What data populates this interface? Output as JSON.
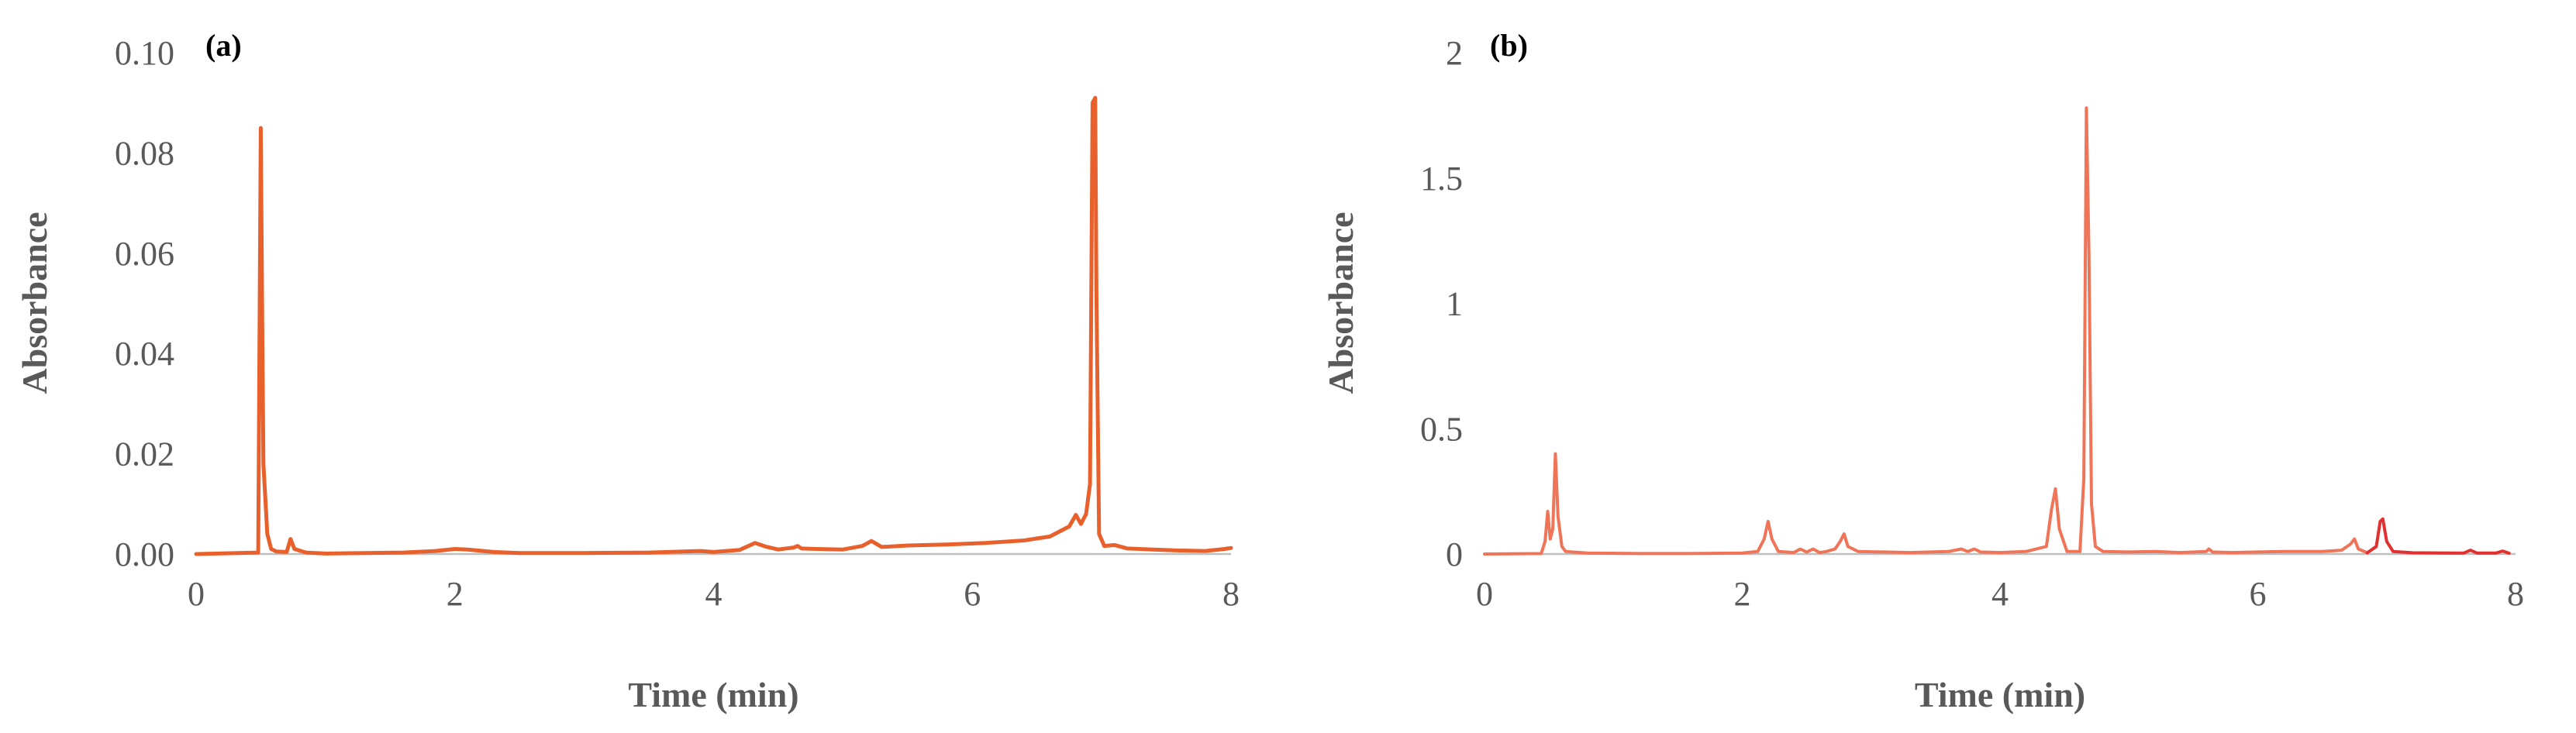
{
  "chart_data": [
    {
      "type": "line",
      "panel_label": "(a)",
      "xlabel": "Time (min)",
      "ylabel": "Absorbance",
      "xlim": [
        0,
        8
      ],
      "ylim": [
        0,
        0.1
      ],
      "x_ticks": [
        0,
        2,
        4,
        6,
        8
      ],
      "x_tick_labels": [
        "0",
        "2",
        "4",
        "6",
        "8"
      ],
      "y_ticks": [
        0,
        0.02,
        0.04,
        0.06,
        0.08,
        0.1
      ],
      "y_tick_labels": [
        "0.00",
        "0.02",
        "0.04",
        "0.06",
        "0.08",
        "0.10"
      ],
      "grid": false,
      "series": [
        {
          "color": "#e8612c",
          "x": [
            0,
            0.48,
            0.5,
            0.51,
            0.52,
            0.55,
            0.58,
            0.62,
            0.7,
            0.73,
            0.76,
            0.85,
            1.0,
            1.3,
            1.6,
            1.85,
            2.0,
            2.1,
            2.3,
            2.5,
            3.0,
            3.5,
            3.9,
            4.0,
            4.2,
            4.32,
            4.4,
            4.5,
            4.62,
            4.65,
            4.68,
            4.8,
            5.0,
            5.15,
            5.22,
            5.3,
            5.5,
            5.8,
            6.1,
            6.4,
            6.6,
            6.75,
            6.8,
            6.84,
            6.88,
            6.91,
            6.93,
            6.95,
            6.96,
            6.98,
            7.02,
            7.1,
            7.2,
            7.4,
            7.6,
            7.8,
            7.95,
            8.0
          ],
          "y": [
            0,
            0.0003,
            0.085,
            0.05,
            0.018,
            0.004,
            0.001,
            0.0005,
            0.0004,
            0.003,
            0.001,
            0.0003,
            0.0001,
            0.0002,
            0.0003,
            0.0006,
            0.001,
            0.0009,
            0.0004,
            0.0002,
            0.0002,
            0.0003,
            0.0006,
            0.0004,
            0.0008,
            0.0022,
            0.0015,
            0.0009,
            0.0013,
            0.0016,
            0.0011,
            0.001,
            0.0009,
            0.0016,
            0.0026,
            0.0014,
            0.0017,
            0.0019,
            0.0022,
            0.0027,
            0.0035,
            0.0055,
            0.0078,
            0.006,
            0.008,
            0.014,
            0.09,
            0.091,
            0.05,
            0.004,
            0.0016,
            0.0018,
            0.0011,
            0.0009,
            0.0007,
            0.0006,
            0.001,
            0.0012
          ]
        }
      ]
    },
    {
      "type": "line",
      "panel_label": "(b)",
      "xlabel": "Time (min)",
      "ylabel": "Absorbance",
      "xlim": [
        0,
        8
      ],
      "ylim": [
        0,
        2
      ],
      "x_ticks": [
        0,
        2,
        4,
        6,
        8
      ],
      "x_tick_labels": [
        "0",
        "2",
        "4",
        "6",
        "8"
      ],
      "y_ticks": [
        0,
        0.5,
        1,
        1.5,
        2
      ],
      "y_tick_labels": [
        "0",
        "0.5",
        "1",
        "1.5",
        "2"
      ],
      "grid": false,
      "series": [
        {
          "color": "#f07457",
          "x": [
            0,
            0.44,
            0.47,
            0.49,
            0.51,
            0.53,
            0.55,
            0.57,
            0.6,
            0.63,
            0.8,
            1.2,
            1.6,
            2.0,
            2.12,
            2.17,
            2.2,
            2.23,
            2.28,
            2.4,
            2.45,
            2.5,
            2.55,
            2.6,
            2.65,
            2.72,
            2.76,
            2.79,
            2.82,
            2.9,
            3.1,
            3.3,
            3.6,
            3.7,
            3.75,
            3.8,
            3.85,
            4.0,
            4.2,
            4.36,
            4.4,
            4.43,
            4.46,
            4.52,
            4.62,
            4.65,
            4.67,
            4.69,
            4.71,
            4.74,
            4.8,
            5.0,
            5.2,
            5.4,
            5.6,
            5.62,
            5.65,
            5.8,
            6.0,
            6.2,
            6.5,
            6.65,
            6.72,
            6.75,
            6.78,
            6.85
          ],
          "y": [
            0,
            0.002,
            0.05,
            0.17,
            0.06,
            0.1,
            0.4,
            0.15,
            0.03,
            0.01,
            0.004,
            0.002,
            0.002,
            0.004,
            0.01,
            0.06,
            0.13,
            0.06,
            0.01,
            0.006,
            0.02,
            0.008,
            0.02,
            0.006,
            0.01,
            0.02,
            0.05,
            0.08,
            0.03,
            0.01,
            0.008,
            0.006,
            0.01,
            0.02,
            0.01,
            0.02,
            0.008,
            0.006,
            0.01,
            0.03,
            0.18,
            0.26,
            0.1,
            0.01,
            0.01,
            0.3,
            1.78,
            1.2,
            0.2,
            0.03,
            0.01,
            0.008,
            0.01,
            0.006,
            0.01,
            0.02,
            0.008,
            0.006,
            0.008,
            0.01,
            0.01,
            0.015,
            0.04,
            0.06,
            0.02,
            0.005
          ]
        },
        {
          "color": "#e03030",
          "x": [
            6.85,
            6.92,
            6.95,
            6.97,
            7.0,
            7.05,
            7.2,
            7.5,
            7.6,
            7.65,
            7.7,
            7.85,
            7.9,
            7.95
          ],
          "y": [
            0.005,
            0.03,
            0.13,
            0.14,
            0.05,
            0.01,
            0.005,
            0.004,
            0.004,
            0.015,
            0.004,
            0.004,
            0.012,
            0.003
          ]
        }
      ]
    }
  ]
}
